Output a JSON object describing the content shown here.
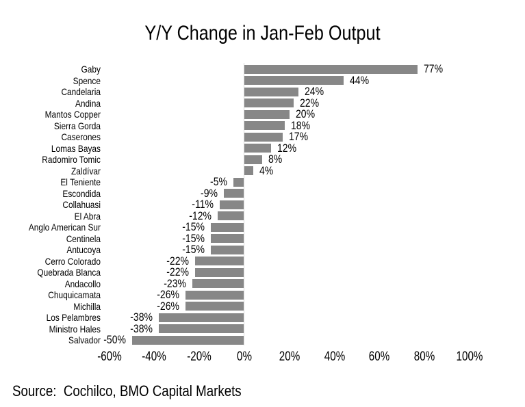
{
  "title": "Y/Y Change in Jan-Feb Output",
  "source": "Source:  Cochilco, BMO Capital Markets",
  "colors": {
    "bar": "#878787",
    "axis_line": "#d9d9d9",
    "text": "#000000",
    "background": "#ffffff"
  },
  "chart_data": {
    "type": "bar",
    "orientation": "horizontal",
    "title": "Y/Y Change in Jan-Feb Output",
    "xlabel": "",
    "ylabel": "",
    "xlim": [
      -60,
      100
    ],
    "grid": false,
    "legend": false,
    "categories": [
      "Gaby",
      "Spence",
      "Candelaria",
      "Andina",
      "Mantos Copper",
      "Sierra Gorda",
      "Caserones",
      "Lomas Bayas",
      "Radomiro Tomic",
      "Zaldívar",
      "El Teniente",
      "Escondida",
      "Collahuasi",
      "El Abra",
      "Anglo American Sur",
      "Centinela",
      "Antucoya",
      "Cerro Colorado",
      "Quebrada Blanca",
      "Andacollo",
      "Chuquicamata",
      "Michilla",
      "Los Pelambres",
      "Ministro Hales",
      "Salvador"
    ],
    "values": [
      77,
      44,
      24,
      22,
      20,
      18,
      17,
      12,
      8,
      4,
      -5,
      -9,
      -11,
      -12,
      -15,
      -15,
      -15,
      -22,
      -22,
      -23,
      -26,
      -26,
      -38,
      -38,
      -50
    ],
    "value_labels": [
      "77%",
      "44%",
      "24%",
      "22%",
      "20%",
      "18%",
      "17%",
      "12%",
      "8%",
      "4%",
      "-5%",
      "-9%",
      "-11%",
      "-12%",
      "-15%",
      "-15%",
      "-15%",
      "-22%",
      "-22%",
      "-23%",
      "-26%",
      "-26%",
      "-38%",
      "-38%",
      "-50%"
    ],
    "x_ticks": [
      -60,
      -40,
      -20,
      0,
      20,
      40,
      60,
      80,
      100
    ],
    "x_tick_labels": [
      "-60%",
      "-40%",
      "-20%",
      "0%",
      "20%",
      "40%",
      "60%",
      "80%",
      "100%"
    ]
  }
}
